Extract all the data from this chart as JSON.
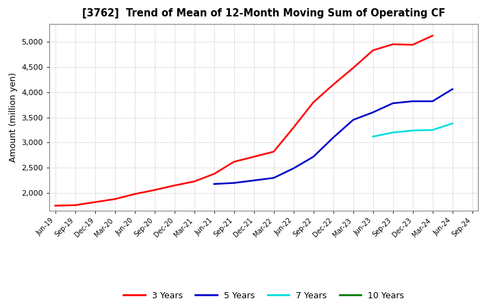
{
  "title": "[3762]  Trend of Mean of 12-Month Moving Sum of Operating CF",
  "ylabel": "Amount (million yen)",
  "background_color": "#ffffff",
  "plot_bg_color": "#ffffff",
  "grid_color": "#aaaaaa",
  "x_labels": [
    "Jun-19",
    "Sep-19",
    "Dec-19",
    "Mar-20",
    "Jun-20",
    "Sep-20",
    "Dec-20",
    "Mar-21",
    "Jun-21",
    "Sep-21",
    "Dec-21",
    "Mar-22",
    "Jun-22",
    "Sep-22",
    "Dec-22",
    "Mar-23",
    "Jun-23",
    "Sep-23",
    "Dec-23",
    "Mar-24",
    "Jun-24",
    "Sep-24"
  ],
  "series_3y": {
    "label": "3 Years",
    "color": "#ff0000",
    "x": [
      0,
      1,
      2,
      3,
      4,
      5,
      6,
      7,
      8,
      9,
      10,
      11,
      12,
      13,
      14,
      15,
      16,
      17,
      18,
      19
    ],
    "y": [
      1750,
      1760,
      1820,
      1880,
      1980,
      2060,
      2150,
      2230,
      2380,
      2620,
      2720,
      2820,
      3300,
      3800,
      4150,
      4480,
      4830,
      4950,
      4940,
      5120
    ]
  },
  "series_5y": {
    "label": "5 Years",
    "color": "#0000cc",
    "x": [
      8,
      9,
      10,
      11,
      12,
      13,
      14,
      15,
      16,
      17,
      18,
      19,
      20
    ],
    "y": [
      2180,
      2200,
      2250,
      2300,
      2490,
      2720,
      3100,
      3450,
      3600,
      3780,
      3820,
      3820,
      4060
    ]
  },
  "series_7y": {
    "label": "7 Years",
    "color": "#00dddd",
    "x": [
      16,
      17,
      18,
      19,
      20
    ],
    "y": [
      3120,
      3200,
      3240,
      3250,
      3380
    ]
  },
  "series_10y": {
    "label": "10 Years",
    "color": "#008000",
    "x": [],
    "y": []
  },
  "ylim": [
    1650,
    5350
  ],
  "yticks": [
    2000,
    2500,
    3000,
    3500,
    4000,
    4500,
    5000
  ],
  "legend_colors": [
    "#ff0000",
    "#0000cc",
    "#00dddd",
    "#008000"
  ],
  "legend_labels": [
    "3 Years",
    "5 Years",
    "7 Years",
    "10 Years"
  ]
}
